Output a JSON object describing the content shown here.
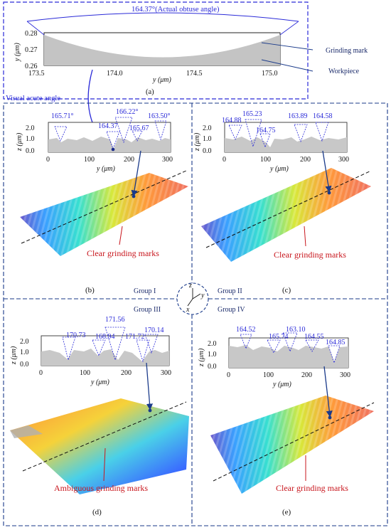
{
  "panel_a": {
    "title_angle": "164.37°(Actual obtuse angle)",
    "y_label": "y (μm)",
    "x_label": "y (μm)",
    "y_ticks": [
      "0.28",
      "0.27",
      "0.26"
    ],
    "x_ticks": [
      "173.5",
      "174.0",
      "174.5",
      "175.0"
    ],
    "grinding_mark_label": "Grinding mark",
    "workpiece_label": "Workpiece",
    "visual_angle_label": "Visual acute angle",
    "caption": "(a)"
  },
  "profile_axis": {
    "z_label": "z (μm)",
    "y_label": "y (μm)",
    "z_ticks": [
      "2.0",
      "1.0",
      "0.0"
    ],
    "x_ticks": [
      "0",
      "100",
      "200",
      "300"
    ]
  },
  "panel_b": {
    "angles": [
      "165.71°",
      "164.37",
      "166.22°",
      "165.67",
      "163.50°"
    ],
    "callout": "Clear grinding marks",
    "caption": "(b)"
  },
  "panel_c": {
    "angles": [
      "164.88",
      "165.23",
      "164.75",
      "163.89",
      "164.58"
    ],
    "callout": "Clear grinding marks",
    "caption": "(c)"
  },
  "panel_d": {
    "angles": [
      "170.73",
      "168.94",
      "171.56",
      "171.72",
      "170.14"
    ],
    "callout": "Ambiguous grinding marks",
    "caption": "(d)"
  },
  "panel_e": {
    "angles": [
      "164.52",
      "165.74",
      "163.10",
      "164.55",
      "164.85"
    ],
    "callout": "Clear grinding marks",
    "caption": "(e)"
  },
  "groups": {
    "g1": "Group I",
    "g2": "Group II",
    "g3": "Group III",
    "g4": "Group IV"
  },
  "axes_icon": {
    "z": "z",
    "y": "y",
    "x": "x"
  },
  "colors": {
    "blue": "#2a2ad8",
    "red": "#c8161d",
    "gray": "#c8c8c8"
  }
}
